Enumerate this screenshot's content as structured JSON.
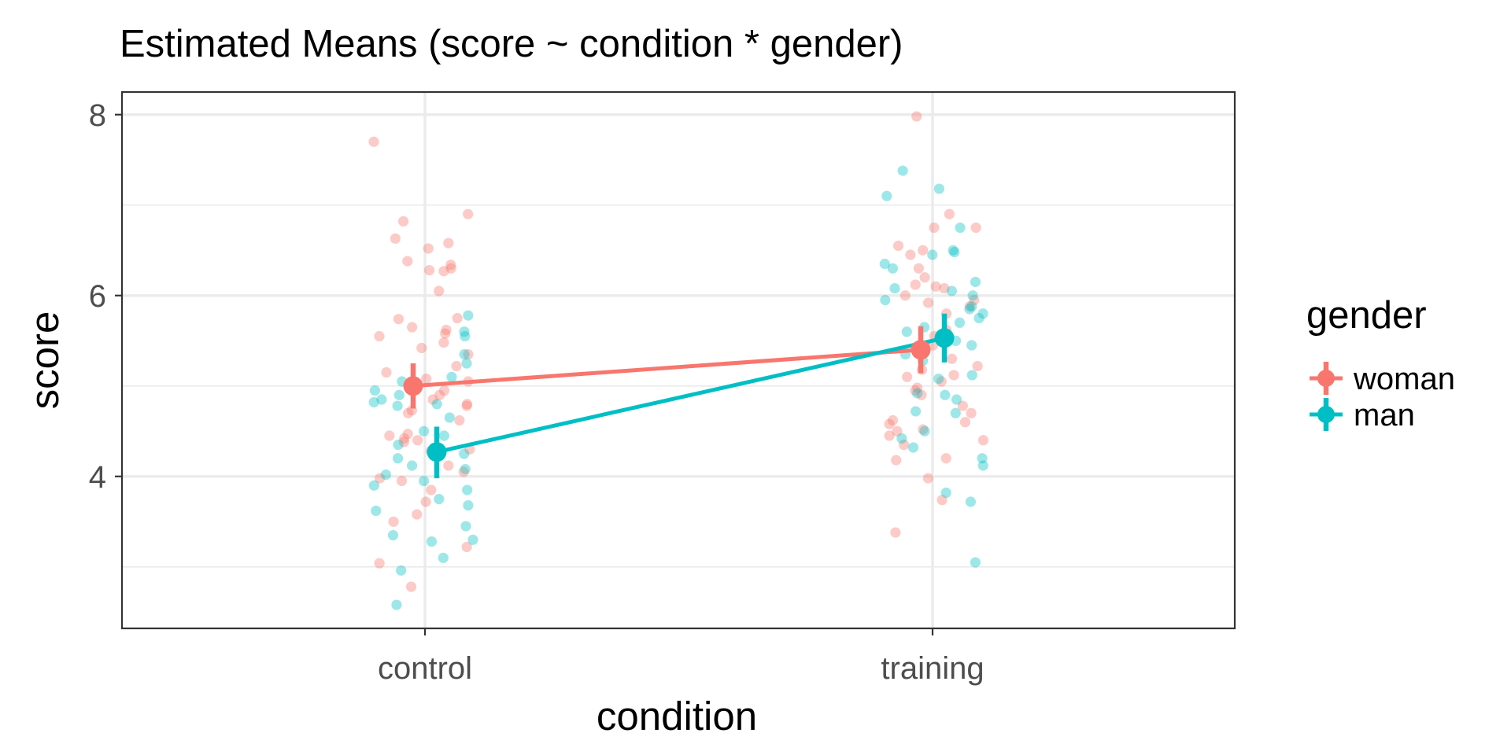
{
  "chart_data": {
    "type": "scatter",
    "title": "Estimated Means (score ~ condition * gender)",
    "xlabel": "condition",
    "ylabel": "score",
    "categories": [
      "control",
      "training"
    ],
    "ylim": [
      2.32,
      8.25
    ],
    "yticks": [
      4,
      6,
      8
    ],
    "y_minor_ticks": [
      3,
      5,
      7
    ],
    "grid": true,
    "legend": {
      "title": "gender",
      "position": "right",
      "entries": [
        "woman",
        "man"
      ]
    },
    "series": [
      {
        "name": "woman",
        "color": "#F8766D",
        "means": [
          {
            "category": "control",
            "mean": 5.0,
            "ci_low": 4.75,
            "ci_high": 5.25
          },
          {
            "category": "training",
            "mean": 5.4,
            "ci_low": 5.14,
            "ci_high": 5.66
          }
        ],
        "raw_points": [
          {
            "category": "control",
            "values": [
              7.7,
              6.9,
              6.82,
              6.63,
              6.58,
              6.52,
              6.38,
              6.34,
              6.3,
              6.28,
              6.27,
              6.05,
              5.75,
              5.74,
              5.65,
              5.62,
              5.58,
              5.55,
              5.48,
              5.42,
              5.35,
              5.22,
              5.15,
              5.08,
              5.05,
              4.95,
              4.9,
              4.85,
              4.8,
              4.78,
              4.73,
              4.7,
              4.62,
              4.47,
              4.45,
              4.42,
              4.4,
              4.38,
              4.3,
              4.28,
              4.12,
              4.05,
              3.98,
              3.95,
              3.85,
              3.72,
              3.58,
              3.5,
              3.22,
              3.04,
              2.78
            ]
          },
          {
            "category": "training",
            "values": [
              7.98,
              6.9,
              6.75,
              6.75,
              6.55,
              6.5,
              6.45,
              6.3,
              6.2,
              6.12,
              6.1,
              6.08,
              6.0,
              5.95,
              5.92,
              5.88,
              5.8,
              5.62,
              5.55,
              5.45,
              5.3,
              5.22,
              5.18,
              5.12,
              5.1,
              5.05,
              4.98,
              4.95,
              4.9,
              4.78,
              4.7,
              4.62,
              4.6,
              4.58,
              4.52,
              4.5,
              4.45,
              4.4,
              4.35,
              4.2,
              4.18,
              3.98,
              3.74,
              3.38
            ]
          }
        ]
      },
      {
        "name": "man",
        "color": "#00BFC4",
        "means": [
          {
            "category": "control",
            "mean": 4.27,
            "ci_low": 3.98,
            "ci_high": 4.55
          },
          {
            "category": "training",
            "mean": 5.53,
            "ci_low": 5.26,
            "ci_high": 5.8
          }
        ],
        "raw_points": [
          {
            "category": "control",
            "values": [
              5.78,
              5.6,
              5.55,
              5.35,
              5.25,
              5.1,
              5.05,
              4.95,
              4.9,
              4.85,
              4.82,
              4.8,
              4.78,
              4.65,
              4.5,
              4.45,
              4.35,
              4.25,
              4.2,
              4.12,
              4.08,
              4.02,
              3.95,
              3.9,
              3.85,
              3.75,
              3.68,
              3.62,
              3.45,
              3.35,
              3.3,
              3.28,
              3.1,
              2.96,
              2.58
            ]
          },
          {
            "category": "training",
            "values": [
              7.38,
              7.18,
              7.1,
              6.75,
              6.5,
              6.48,
              6.45,
              6.35,
              6.3,
              6.15,
              6.08,
              6.05,
              6.0,
              5.95,
              5.88,
              5.85,
              5.8,
              5.75,
              5.7,
              5.65,
              5.6,
              5.5,
              5.45,
              5.4,
              5.35,
              5.28,
              5.12,
              5.08,
              4.92,
              4.9,
              4.85,
              4.72,
              4.7,
              4.5,
              4.42,
              4.32,
              4.2,
              4.12,
              3.82,
              3.72,
              3.05
            ]
          }
        ]
      }
    ]
  }
}
